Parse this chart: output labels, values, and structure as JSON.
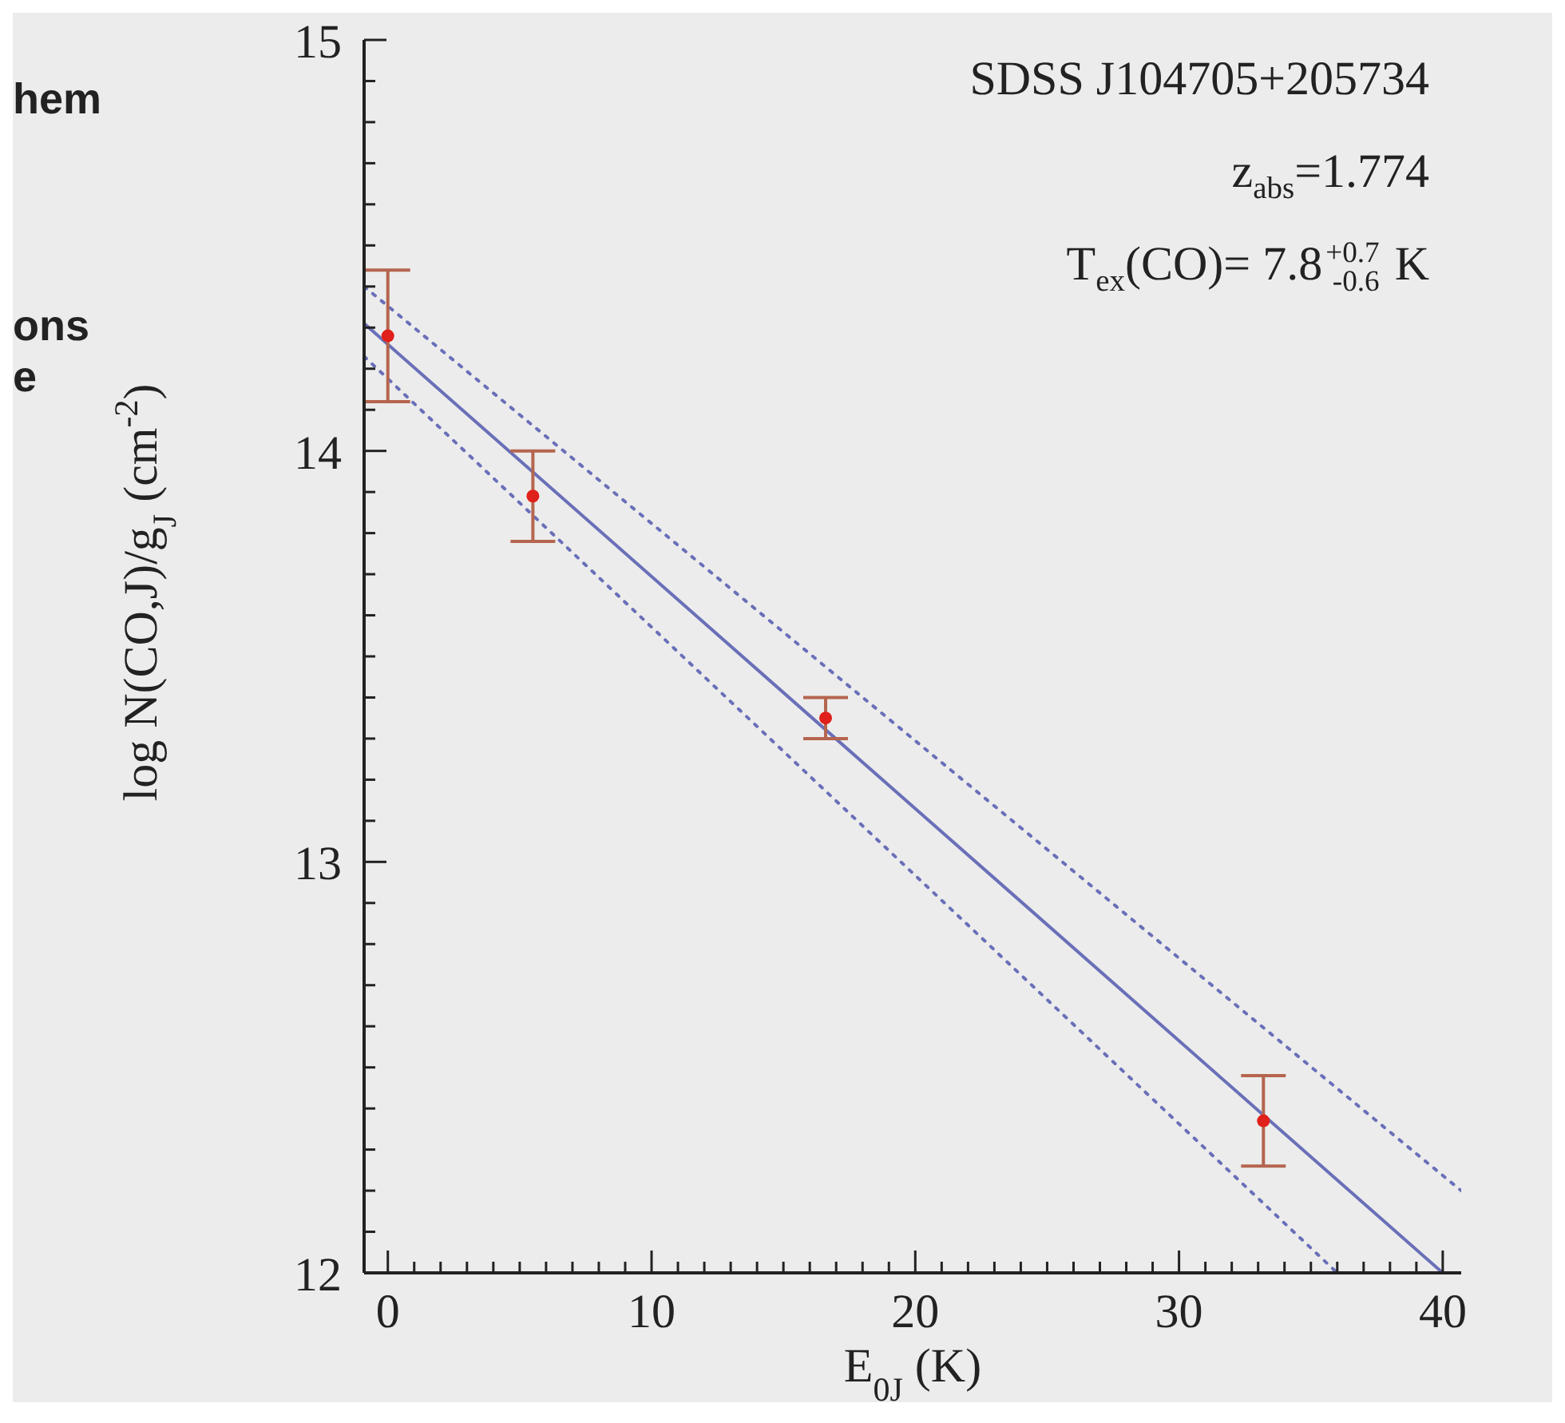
{
  "chart_data": {
    "type": "scatter",
    "xlabel": "E$_{0J}$ (K)",
    "ylabel": "log N(CO,J)/g$_{J}$ (cm$^{-2}$)",
    "xlim": [
      -0.9,
      40.7
    ],
    "ylim": [
      12,
      15
    ],
    "xticks": [
      0,
      {
        "value": 1,
        "label": null
      },
      {
        "value": 2,
        "label": null
      },
      {
        "value": 3,
        "label": null
      },
      {
        "value": 4,
        "label": null
      },
      {
        "value": 5,
        "label": null
      },
      {
        "value": 6,
        "label": null
      },
      {
        "value": 7,
        "label": null
      },
      {
        "value": 8,
        "label": null
      },
      {
        "value": 9,
        "label": null
      },
      10,
      {
        "value": 11,
        "label": null
      },
      {
        "value": 12,
        "label": null
      },
      {
        "value": 13,
        "label": null
      },
      {
        "value": 14,
        "label": null
      },
      {
        "value": 15,
        "label": null
      },
      {
        "value": 16,
        "label": null
      },
      {
        "value": 17,
        "label": null
      },
      {
        "value": 18,
        "label": null
      },
      {
        "value": 19,
        "label": null
      },
      20,
      {
        "value": 21,
        "label": null
      },
      {
        "value": 22,
        "label": null
      },
      {
        "value": 23,
        "label": null
      },
      {
        "value": 24,
        "label": null
      },
      {
        "value": 25,
        "label": null
      },
      {
        "value": 26,
        "label": null
      },
      {
        "value": 27,
        "label": null
      },
      {
        "value": 28,
        "label": null
      },
      {
        "value": 29,
        "label": null
      },
      30,
      {
        "value": 31,
        "label": null
      },
      {
        "value": 32,
        "label": null
      },
      {
        "value": 33,
        "label": null
      },
      {
        "value": 34,
        "label": null
      },
      {
        "value": 35,
        "label": null
      },
      {
        "value": 36,
        "label": null
      },
      {
        "value": 37,
        "label": null
      },
      {
        "value": 38,
        "label": null
      },
      {
        "value": 39,
        "label": null
      },
      40
    ],
    "yticks": [
      12,
      {
        "value": 12.1,
        "label": null
      },
      {
        "value": 12.2,
        "label": null
      },
      {
        "value": 12.3,
        "label": null
      },
      {
        "value": 12.4,
        "label": null
      },
      {
        "value": 12.5,
        "label": null
      },
      {
        "value": 12.6,
        "label": null
      },
      {
        "value": 12.7,
        "label": null
      },
      {
        "value": 12.8,
        "label": null
      },
      {
        "value": 12.9,
        "label": null
      },
      13,
      {
        "value": 13.1,
        "label": null
      },
      {
        "value": 13.2,
        "label": null
      },
      {
        "value": 13.3,
        "label": null
      },
      {
        "value": 13.4,
        "label": null
      },
      {
        "value": 13.5,
        "label": null
      },
      {
        "value": 13.6,
        "label": null
      },
      {
        "value": 13.7,
        "label": null
      },
      {
        "value": 13.8,
        "label": null
      },
      {
        "value": 13.9,
        "label": null
      },
      14,
      {
        "value": 14.1,
        "label": null
      },
      {
        "value": 14.2,
        "label": null
      },
      {
        "value": 14.3,
        "label": null
      },
      {
        "value": 14.4,
        "label": null
      },
      {
        "value": 14.5,
        "label": null
      },
      {
        "value": 14.6,
        "label": null
      },
      {
        "value": 14.7,
        "label": null
      },
      {
        "value": 14.8,
        "label": null
      },
      {
        "value": 14.9,
        "label": null
      },
      15
    ],
    "marker": "circle",
    "series": [
      {
        "type": "line",
        "color": "#6a6fb8",
        "line_style": "dotted",
        "marker": "none",
        "x": [
          -0.9,
          40.7
        ],
        "values": [
          14.4,
          12.2
        ]
      },
      {
        "type": "line",
        "color": "#6a6fb8",
        "line_style": "dotted",
        "marker": "none",
        "x": [
          -0.9,
          36.0
        ],
        "values": [
          14.23,
          12.0
        ]
      },
      {
        "type": "line",
        "color": "#6a6fb8",
        "line_style": "solid",
        "marker": "none",
        "x": [
          -0.9,
          40.0
        ],
        "values": [
          14.31,
          12.0
        ]
      },
      {
        "type": "scatter",
        "color": "#e0201a",
        "x": [
          0,
          5.5,
          16.6,
          33.2
        ],
        "values": [
          14.28,
          13.89,
          13.35,
          12.37
        ],
        "errors": [
          0.16,
          0.11,
          0.05,
          0.11
        ]
      }
    ],
    "annotations": [
      "SDSS J104705+205734",
      "z$_{abs}$=1.774",
      "T$_{ex}$(CO)= 7.8$^{+0.7}$$_{-0.6}$ K",
      "hem",
      "ons",
      "e"
    ]
  }
}
